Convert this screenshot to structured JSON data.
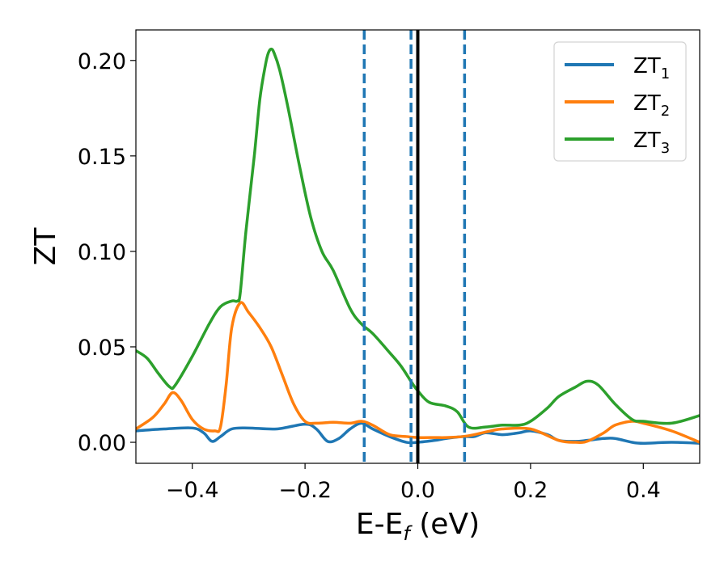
{
  "chart_data": {
    "type": "line",
    "xlabel": "E-E",
    "xlabel_subscript": "f",
    "xlabel_unit": " (eV)",
    "ylabel": "ZT",
    "xlim": [
      -0.5,
      0.5
    ],
    "ylim": [
      -0.011,
      0.216
    ],
    "x_ticks": [
      -0.4,
      -0.2,
      0.0,
      0.2,
      0.4
    ],
    "x_tick_labels": [
      "−0.4",
      "−0.2",
      "0.0",
      "0.2",
      "0.4"
    ],
    "y_ticks": [
      0.0,
      0.05,
      0.1,
      0.15,
      0.2
    ],
    "y_tick_labels": [
      "0.00",
      "0.05",
      "0.10",
      "0.15",
      "0.20"
    ],
    "grid": false,
    "legend_position": "top-right",
    "vertical_lines": [
      {
        "x": -0.095,
        "style": "dashed",
        "color": "#1f77b4"
      },
      {
        "x": -0.012,
        "style": "dashed",
        "color": "#1f77b4"
      },
      {
        "x": 0.083,
        "style": "dashed",
        "color": "#1f77b4"
      },
      {
        "x": 0.0,
        "style": "solid",
        "color": "#000000"
      }
    ],
    "series": [
      {
        "name": "ZT",
        "subscript": "1",
        "color": "#1f77b4",
        "x": [
          -0.5,
          -0.45,
          -0.4,
          -0.38,
          -0.365,
          -0.35,
          -0.33,
          -0.3,
          -0.25,
          -0.2,
          -0.18,
          -0.16,
          -0.14,
          -0.12,
          -0.1,
          -0.08,
          -0.05,
          -0.02,
          0.0,
          0.03,
          0.05,
          0.08,
          0.1,
          0.12,
          0.15,
          0.18,
          0.2,
          0.23,
          0.25,
          0.28,
          0.3,
          0.33,
          0.35,
          0.38,
          0.4,
          0.45,
          0.5
        ],
        "y": [
          0.006,
          0.007,
          0.0075,
          0.005,
          0.0005,
          0.003,
          0.007,
          0.0075,
          0.007,
          0.0095,
          0.007,
          0.0005,
          0.002,
          0.007,
          0.01,
          0.007,
          0.003,
          0.0,
          0.0,
          0.001,
          0.002,
          0.003,
          0.003,
          0.005,
          0.004,
          0.005,
          0.006,
          0.004,
          0.001,
          0.0005,
          0.001,
          0.002,
          0.002,
          0.0,
          -0.0005,
          0.0,
          -0.0005
        ]
      },
      {
        "name": "ZT",
        "subscript": "2",
        "color": "#ff7f0e",
        "x": [
          -0.5,
          -0.47,
          -0.45,
          -0.435,
          -0.42,
          -0.4,
          -0.38,
          -0.36,
          -0.35,
          -0.34,
          -0.33,
          -0.315,
          -0.3,
          -0.28,
          -0.26,
          -0.24,
          -0.22,
          -0.2,
          -0.18,
          -0.15,
          -0.12,
          -0.1,
          -0.08,
          -0.05,
          -0.02,
          0.0,
          0.03,
          0.05,
          0.08,
          0.1,
          0.13,
          0.15,
          0.2,
          0.25,
          0.28,
          0.3,
          0.33,
          0.35,
          0.38,
          0.4,
          0.45,
          0.5
        ],
        "y": [
          0.007,
          0.013,
          0.02,
          0.026,
          0.022,
          0.012,
          0.007,
          0.006,
          0.008,
          0.03,
          0.06,
          0.073,
          0.068,
          0.06,
          0.05,
          0.035,
          0.02,
          0.011,
          0.01,
          0.0105,
          0.01,
          0.011,
          0.009,
          0.004,
          0.003,
          0.0025,
          0.0025,
          0.0025,
          0.003,
          0.004,
          0.006,
          0.007,
          0.007,
          0.001,
          0.0,
          0.0005,
          0.005,
          0.009,
          0.011,
          0.01,
          0.006,
          0.0
        ]
      },
      {
        "name": "ZT",
        "subscript": "3",
        "color": "#2ca02c",
        "x": [
          -0.5,
          -0.48,
          -0.46,
          -0.44,
          -0.43,
          -0.4,
          -0.37,
          -0.35,
          -0.33,
          -0.32,
          -0.315,
          -0.305,
          -0.29,
          -0.28,
          -0.27,
          -0.265,
          -0.26,
          -0.255,
          -0.245,
          -0.23,
          -0.21,
          -0.19,
          -0.17,
          -0.15,
          -0.12,
          -0.1,
          -0.08,
          -0.05,
          -0.03,
          -0.01,
          0.0,
          0.02,
          0.05,
          0.07,
          0.09,
          0.12,
          0.15,
          0.18,
          0.2,
          0.23,
          0.25,
          0.28,
          0.3,
          0.32,
          0.35,
          0.38,
          0.4,
          0.45,
          0.5
        ],
        "y": [
          0.048,
          0.044,
          0.036,
          0.029,
          0.03,
          0.045,
          0.062,
          0.071,
          0.074,
          0.074,
          0.078,
          0.11,
          0.15,
          0.18,
          0.198,
          0.204,
          0.206,
          0.204,
          0.195,
          0.175,
          0.145,
          0.118,
          0.1,
          0.09,
          0.07,
          0.062,
          0.057,
          0.047,
          0.04,
          0.031,
          0.027,
          0.021,
          0.019,
          0.016,
          0.008,
          0.008,
          0.009,
          0.009,
          0.011,
          0.018,
          0.024,
          0.029,
          0.032,
          0.03,
          0.02,
          0.012,
          0.011,
          0.01,
          0.014
        ]
      }
    ]
  }
}
